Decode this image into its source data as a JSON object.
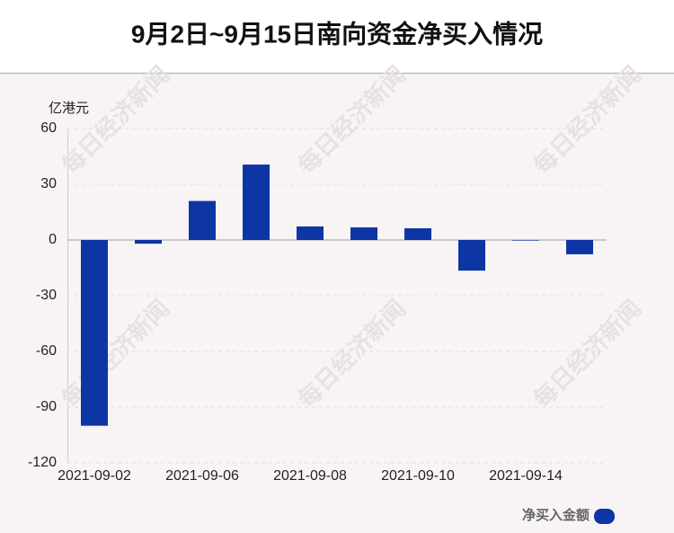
{
  "chart_data": {
    "type": "bar",
    "title": "9月2日~9月15日南向资金净买入情况",
    "y_unit": "亿港元",
    "watermark": "每日经济新闻",
    "categories": [
      "2021-09-02",
      null,
      "2021-09-06",
      null,
      "2021-09-08",
      null,
      "2021-09-10",
      null,
      "2021-09-14",
      null
    ],
    "series": [
      {
        "name": "净买入金额",
        "color": "#0d35a3",
        "values": [
          -100,
          -2,
          21,
          40.6,
          7.3,
          6.8,
          6.3,
          -16.5,
          -0.3,
          -7.7
        ]
      }
    ],
    "ylim": [
      -120,
      60
    ],
    "yticks": [
      60,
      30,
      0,
      -30,
      -60,
      -90,
      -120
    ],
    "grid": true
  }
}
